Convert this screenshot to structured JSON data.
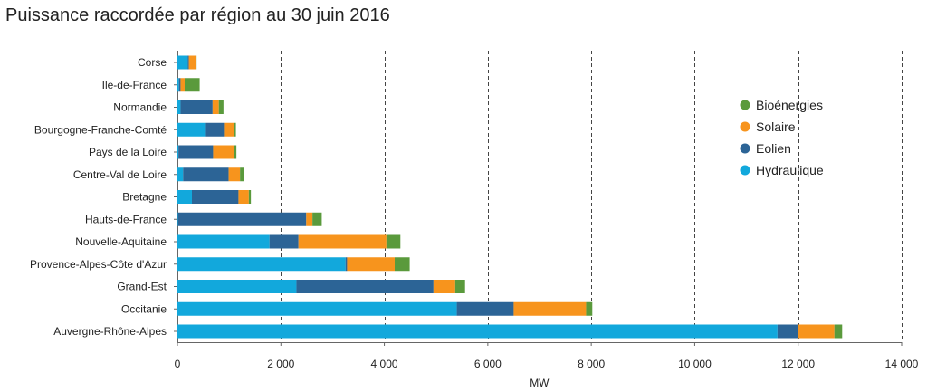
{
  "chart_data": {
    "type": "bar",
    "orientation": "horizontal",
    "stacked": true,
    "title": "Puissance raccordée par région au 30 juin 2016",
    "xlabel": "MW",
    "xlim": [
      0,
      14000
    ],
    "xticks": [
      0,
      2000,
      4000,
      6000,
      8000,
      10000,
      12000,
      14000
    ],
    "xtick_labels": [
      "0",
      "2 000",
      "4 000",
      "6 000",
      "8 000",
      "10 000",
      "12 000",
      "14 000"
    ],
    "grid": "vertical dashed",
    "legend_position": "right",
    "categories": [
      "Corse",
      "Ile-de-France",
      "Normandie",
      "Bourgogne-Franche-Comté",
      "Pays de la Loire",
      "Centre-Val de Loire",
      "Bretagne",
      "Hauts-de-France",
      "Nouvelle-Aquitaine",
      "Provence-Alpes-Côte d'Azur",
      "Grand-Est",
      "Occitanie",
      "Auvergne-Rhône-Alpes"
    ],
    "series": [
      {
        "name": "Hydraulique",
        "color": "#12a8dc",
        "values": [
          200,
          30,
          60,
          550,
          20,
          110,
          280,
          10,
          1780,
          3250,
          2300,
          5400,
          11600
        ]
      },
      {
        "name": "Eolien",
        "color": "#2c6496",
        "values": [
          20,
          30,
          620,
          350,
          670,
          880,
          900,
          2480,
          560,
          30,
          2650,
          1100,
          400
        ]
      },
      {
        "name": "Solaire",
        "color": "#f7941d",
        "values": [
          140,
          80,
          120,
          200,
          400,
          220,
          200,
          120,
          1700,
          920,
          420,
          1400,
          700
        ]
      },
      {
        "name": "Bioénergies",
        "color": "#5a9a3c",
        "values": [
          10,
          290,
          90,
          30,
          50,
          70,
          40,
          180,
          270,
          290,
          190,
          120,
          150
        ]
      }
    ],
    "legend_order": [
      "Bioénergies",
      "Solaire",
      "Eolien",
      "Hydraulique"
    ]
  }
}
